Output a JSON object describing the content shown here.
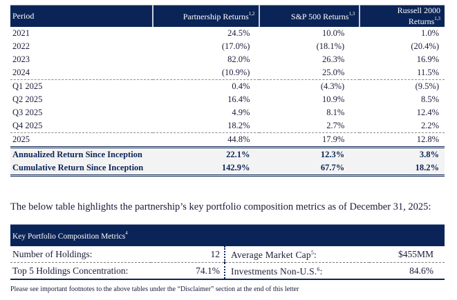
{
  "returns_table": {
    "headers": {
      "period": "Period",
      "partnership": "Partnership Returns",
      "partnership_sup": "1,2",
      "sp500": "S&P 500 Returns",
      "sp500_sup": "1,3",
      "russell": "Russell 2000 Returns",
      "russell_sup": "1,3"
    },
    "rows": [
      {
        "period": "2021",
        "partnership": "24.5%",
        "sp500": "10.0%",
        "russell": "1.0%"
      },
      {
        "period": "2022",
        "partnership": "(17.0%)",
        "sp500": "(18.1%)",
        "russell": "(20.4%)"
      },
      {
        "period": "2023",
        "partnership": "82.0%",
        "sp500": "26.3%",
        "russell": "16.9%"
      },
      {
        "period": "2024",
        "partnership": "(10.9%)",
        "sp500": "25.0%",
        "russell": "11.5%"
      },
      {
        "period": "Q1 2025",
        "partnership": "0.4%",
        "sp500": "(4.3%)",
        "russell": "(9.5%)"
      },
      {
        "period": "Q2 2025",
        "partnership": "16.4%",
        "sp500": "10.9%",
        "russell": "8.5%"
      },
      {
        "period": "Q3 2025",
        "partnership": "4.9%",
        "sp500": "8.1%",
        "russell": "12.4%"
      },
      {
        "period": "Q4 2025",
        "partnership": "18.2%",
        "sp500": "2.7%",
        "russell": "2.2%"
      },
      {
        "period": "2025",
        "partnership": "44.8%",
        "sp500": "17.9%",
        "russell": "12.8%"
      }
    ],
    "summary_rows": [
      {
        "period": "Annualized Return Since Inception",
        "partnership": "22.1%",
        "sp500": "12.3%",
        "russell": "3.8%"
      },
      {
        "period": "Cumulative Return Since Inception",
        "partnership": "142.9%",
        "sp500": "67.7%",
        "russell": "18.2%"
      }
    ]
  },
  "intro_text": "The below table highlights the partnership’s key portfolio composition metrics as of December 31, 2025:",
  "metrics_table": {
    "title": "Key Portfolio Composition Metrics",
    "title_sup": "4",
    "rows": [
      {
        "label": "Number of Holdings:",
        "value": "12",
        "label2": "Average Market Cap",
        "label2_sup": "5",
        "label2_suffix": ":",
        "value2": "$455MM"
      },
      {
        "label": "Top 5 Holdings Concentration:",
        "value": "74.1%",
        "label2": "Investments Non-U.S.",
        "label2_sup": "6",
        "label2_suffix": ":",
        "value2": "84.6%"
      }
    ]
  },
  "footnote": "Please see important footnotes to the above tables under the “Disclaimer” section at the end of this letter",
  "colors": {
    "header_bg": "#0b2457",
    "summary_bg": "#f3f3f3",
    "summary_text": "#0b2457"
  }
}
